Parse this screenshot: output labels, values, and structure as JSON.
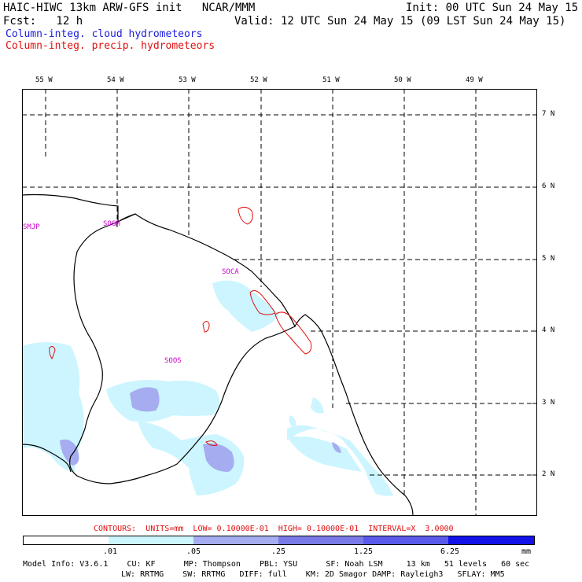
{
  "header": {
    "title": "HAIC-HIWC 13km ARW-GFS init   NCAR/MMM",
    "init": "Init: 00 UTC Sun 24 May 15",
    "fcst": "Fcst:   12 h",
    "valid": "Valid: 12 UTC Sun 24 May 15 (09 LST Sun 24 May 15)"
  },
  "legend": {
    "cloud": "Column-integ. cloud hydrometeors",
    "precip": "Column-integ. precip. hydrometeors",
    "cloud_color": "#1a1adc",
    "precip_color": "#e01010"
  },
  "map": {
    "lon_labels": [
      "55 W",
      "54 W",
      "53 W",
      "52 W",
      "51 W",
      "50 W",
      "49 W"
    ],
    "lat_labels": [
      "7 N",
      "6 N",
      "5 N",
      "4 N",
      "3 N",
      "2 N"
    ],
    "stations": [
      "SMJP",
      "SOGM",
      "SOCA",
      "SOOS"
    ],
    "shade_colors": [
      "#ffffff",
      "#ccf5ff",
      "#a6acf0",
      "#7a7ae8",
      "#1212e8"
    ],
    "grid_style": "dashed",
    "coastline_color": "#000000"
  },
  "contours_text": "CONTOURS:  UNITS=mm  LOW= 0.10000E-01  HIGH= 0.10000E-01  INTERVAL=X  3.0000",
  "colorbar": {
    "ticks": [
      ".01",
      ".05",
      ".25",
      "1.25",
      "6.25"
    ],
    "units": "mm"
  },
  "model_info": {
    "line1": "Model Info: V3.6.1    CU: KF      MP: Thompson    PBL: YSU      SF: Noah LSM     13 km   51 levels   60 sec",
    "line2": "LW: RRTMG    SW: RRTMG   DIFF: full    KM: 2D Smagor DAMP: Rayleigh3   SFLAY: MM5"
  }
}
